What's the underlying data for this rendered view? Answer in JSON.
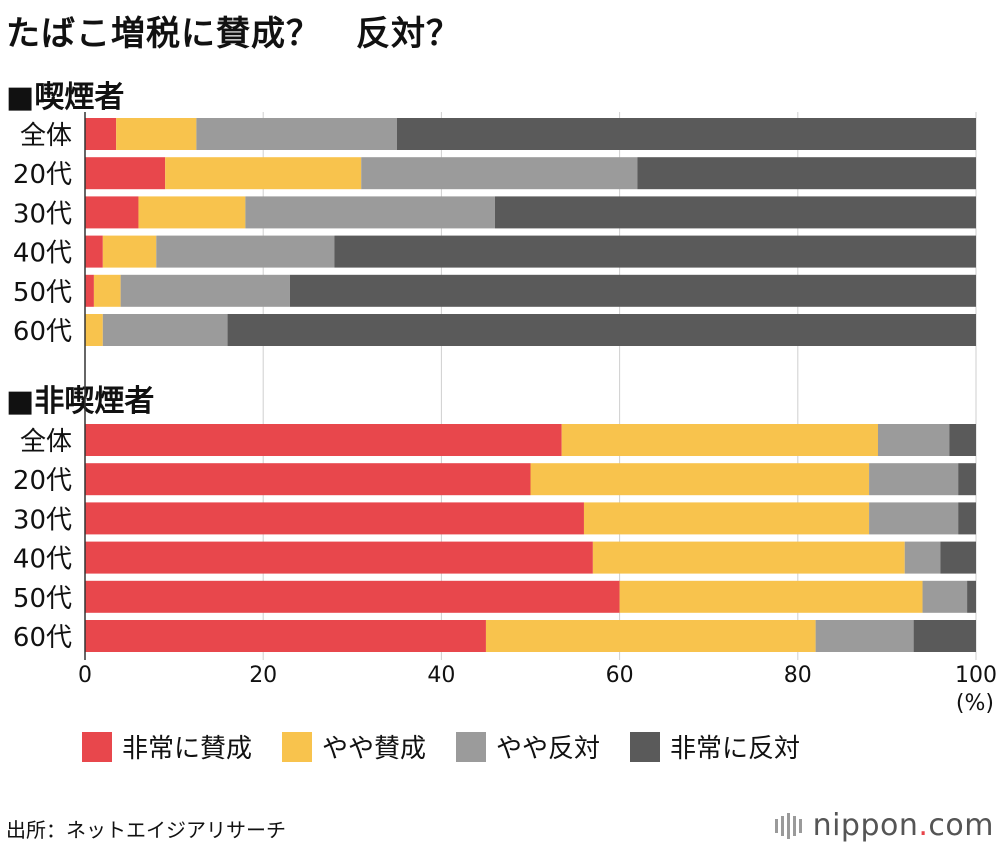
{
  "title": "たばこ増税に賛成？　反対？",
  "source": "出所：ネットエイジアリサーチ",
  "brand": {
    "name": "nippon",
    "dot": ".",
    "suffix": "com"
  },
  "colors": {
    "very_agree": "#e8474c",
    "somewhat_agree": "#f8c34d",
    "somewhat_disagree": "#9b9b9b",
    "very_disagree": "#5a5a5a"
  },
  "chart_data": {
    "type": "bar",
    "orientation": "horizontal",
    "stacked": true,
    "xlim": [
      0,
      100
    ],
    "xticks": [
      "0",
      "20",
      "40",
      "60",
      "80",
      "100"
    ],
    "xunit": "(%)",
    "legend": [
      "非常に賛成",
      "やや賛成",
      "やや反対",
      "非常に反対"
    ],
    "groups": [
      {
        "label": "■喫煙者",
        "categories": [
          "全体",
          "20代",
          "30代",
          "40代",
          "50代",
          "60代"
        ],
        "series": [
          {
            "name": "非常に賛成",
            "values": [
              3.5,
              9,
              6,
              2,
              1,
              0
            ]
          },
          {
            "name": "やや賛成",
            "values": [
              9,
              22,
              12,
              6,
              3,
              2
            ]
          },
          {
            "name": "やや反対",
            "values": [
              22.5,
              31,
              28,
              20,
              19,
              14
            ]
          },
          {
            "name": "非常に反対",
            "values": [
              65,
              38,
              54,
              72,
              77,
              84
            ]
          }
        ]
      },
      {
        "label": "■非喫煙者",
        "categories": [
          "全体",
          "20代",
          "30代",
          "40代",
          "50代",
          "60代"
        ],
        "series": [
          {
            "name": "非常に賛成",
            "values": [
              53.5,
              50,
              56,
              57,
              60,
              45
            ]
          },
          {
            "name": "やや賛成",
            "values": [
              35.5,
              38,
              32,
              35,
              34,
              37
            ]
          },
          {
            "name": "やや反対",
            "values": [
              8,
              10,
              10,
              4,
              5,
              11
            ]
          },
          {
            "name": "非常に反対",
            "values": [
              3,
              2,
              2,
              4,
              1,
              7
            ]
          }
        ]
      }
    ]
  }
}
